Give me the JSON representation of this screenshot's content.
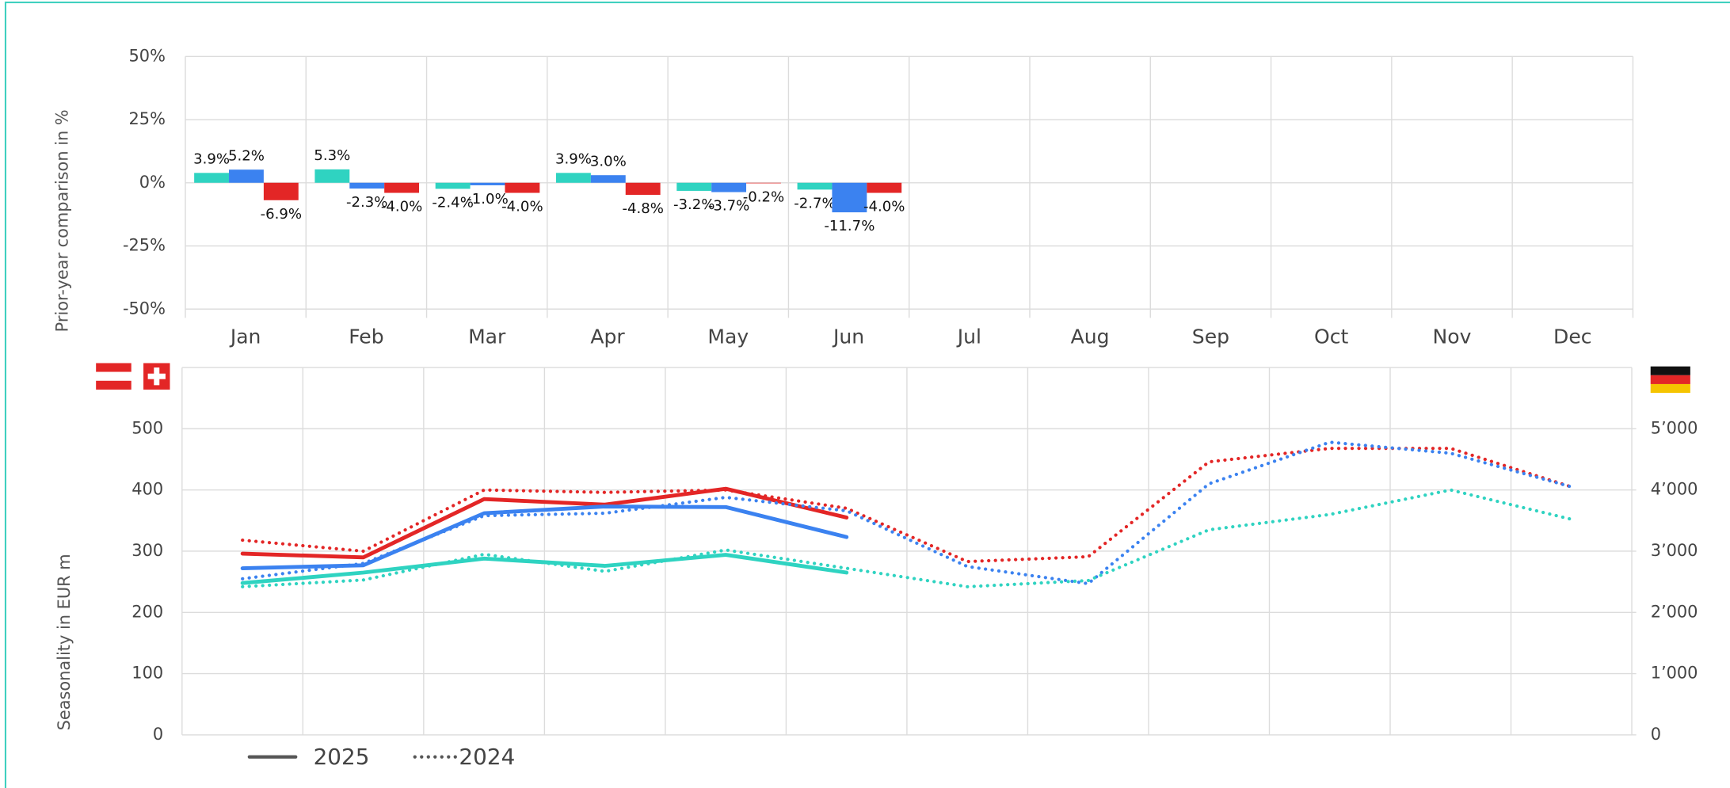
{
  "chart_data": [
    {
      "type": "bar",
      "ylabel": "Prior-year comparison in %",
      "categories": [
        "Jan",
        "Feb",
        "Mar",
        "Apr",
        "May",
        "Jun",
        "Jul",
        "Aug",
        "Sep",
        "Oct",
        "Nov",
        "Dec"
      ],
      "ylim": [
        -50,
        50
      ],
      "yticks": [
        {
          "value": -50,
          "label": "-50%"
        },
        {
          "value": -25,
          "label": "-25%"
        },
        {
          "value": 0,
          "label": "0%"
        },
        {
          "value": 25,
          "label": "25%"
        },
        {
          "value": 50,
          "label": "50%"
        }
      ],
      "grid": true,
      "series": [
        {
          "color": "#2fd3c1",
          "values": [
            3.9,
            5.3,
            -2.4,
            3.9,
            -3.2,
            -2.7,
            null,
            null,
            null,
            null,
            null,
            null
          ],
          "value_labels": [
            "3.9%",
            "5.3%",
            "-2.4%",
            "3.9%",
            "-3.2%",
            "-2.7%",
            null,
            null,
            null,
            null,
            null,
            null
          ]
        },
        {
          "color": "#3b82f0",
          "values": [
            5.2,
            -2.3,
            -1.0,
            3.0,
            -3.7,
            -11.7,
            null,
            null,
            null,
            null,
            null,
            null
          ],
          "value_labels": [
            "5.2%",
            "-2.3%",
            "-1.0%",
            "3.0%",
            "-3.7%",
            "-11.7%",
            null,
            null,
            null,
            null,
            null,
            null
          ]
        },
        {
          "color": "#e32626",
          "values": [
            -6.9,
            -4.0,
            -4.0,
            -4.8,
            -0.2,
            -4.0,
            null,
            null,
            null,
            null,
            null,
            null
          ],
          "value_labels": [
            "-6.9%",
            "-4.0%",
            "-4.0%",
            "-4.8%",
            "-0.2%",
            "-4.0%",
            null,
            null,
            null,
            null,
            null,
            null
          ]
        }
      ]
    },
    {
      "type": "line",
      "ylabel": "Seasonality in EUR m",
      "ylim": [
        0,
        600
      ],
      "yticks": [
        0,
        100,
        200,
        300,
        400,
        500
      ],
      "y2lim": [
        0,
        6000
      ],
      "y2ticks": [
        0,
        {
          "value": 1000,
          "label": "1’000"
        },
        {
          "value": 2000,
          "label": "2’000"
        },
        {
          "value": 3000,
          "label": "3’000"
        },
        {
          "value": 4000,
          "label": "4’000"
        },
        {
          "value": 5000,
          "label": "5’000"
        }
      ],
      "grid": true,
      "legend": [
        {
          "name": "2025",
          "dash": "solid"
        },
        {
          "name": "2024",
          "dash": "dotted"
        }
      ],
      "series": [
        {
          "legend": 0,
          "color": "#e32626",
          "values": [
            296,
            290,
            385,
            376,
            402,
            355,
            null,
            null,
            null,
            null,
            null,
            null
          ]
        },
        {
          "legend": 0,
          "color": "#3b82f0",
          "axis": "y2",
          "values": [
            2720,
            2770,
            3620,
            3730,
            3720,
            3230,
            null,
            null,
            null,
            null,
            null,
            null
          ]
        },
        {
          "legend": 0,
          "color": "#2fd3c1",
          "values": [
            248,
            265,
            288,
            276,
            294,
            265,
            null,
            null,
            null,
            null,
            null,
            null
          ]
        },
        {
          "legend": 1,
          "color": "#e32626",
          "values": [
            318,
            300,
            400,
            396,
            400,
            370,
            283,
            291,
            446,
            468,
            468,
            405
          ]
        },
        {
          "legend": 1,
          "color": "#3b82f0",
          "axis": "y2",
          "values": [
            2550,
            2800,
            3580,
            3620,
            3880,
            3660,
            2750,
            2470,
            4100,
            4780,
            4600,
            4050
          ]
        },
        {
          "legend": 1,
          "color": "#2fd3c1",
          "values": [
            242,
            253,
            295,
            267,
            302,
            272,
            242,
            252,
            335,
            360,
            400,
            352
          ]
        }
      ]
    }
  ]
}
